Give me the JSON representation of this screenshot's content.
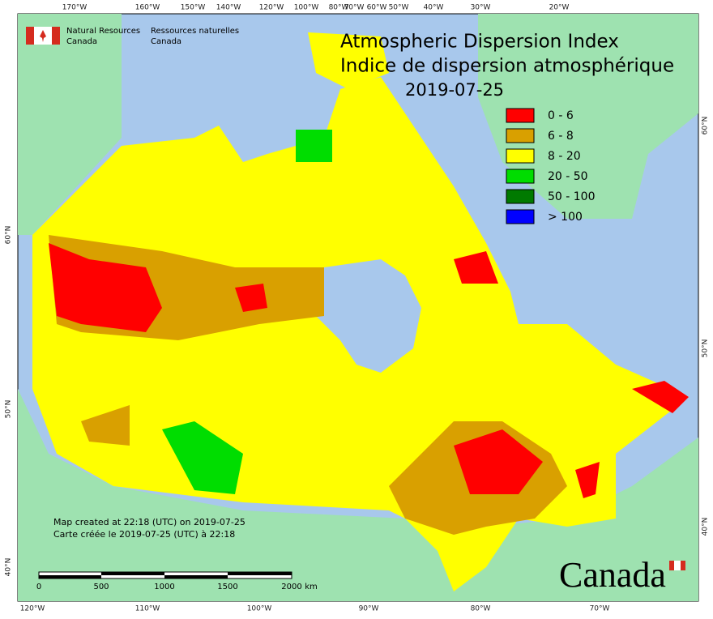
{
  "header": {
    "org_en": [
      "Natural Resources",
      "Canada"
    ],
    "org_fr": [
      "Ressources naturelles",
      "Canada"
    ]
  },
  "title": {
    "line1": "Atmospheric Dispersion Index",
    "line2": "Indice de dispersion atmosphérique",
    "date": "2019-07-25"
  },
  "legend": [
    {
      "label": "0 - 6",
      "color": "#ff0000"
    },
    {
      "label": "6 - 8",
      "color": "#d9a000"
    },
    {
      "label": "8 - 20",
      "color": "#ffff00"
    },
    {
      "label": "20 - 50",
      "color": "#00dd00"
    },
    {
      "label": "50 - 100",
      "color": "#007a00"
    },
    {
      "label": "> 100",
      "color": "#0000ff"
    }
  ],
  "graticule": {
    "top": [
      "170°W",
      "160°W",
      "150°W",
      "140°W",
      "120°W",
      "100°W",
      "80°W",
      "70°W",
      "60°W",
      "50°W",
      "40°W",
      "30°W",
      "20°W"
    ],
    "bottom": [
      "120°W",
      "110°W",
      "100°W",
      "90°W",
      "80°W",
      "70°W"
    ],
    "left": [
      "60°N",
      "50°N",
      "40°N"
    ],
    "right": [
      "60°N",
      "50°N",
      "40°N"
    ]
  },
  "scale_bar": [
    "0",
    "500",
    "1000",
    "1500",
    "2000",
    "km"
  ],
  "credits": [
    "Map created at 22:18 (UTC) on 2019-07-25",
    "Carte créée le 2019-07-25 (UTC) à 22:18"
  ],
  "wordmark": "Canada"
}
